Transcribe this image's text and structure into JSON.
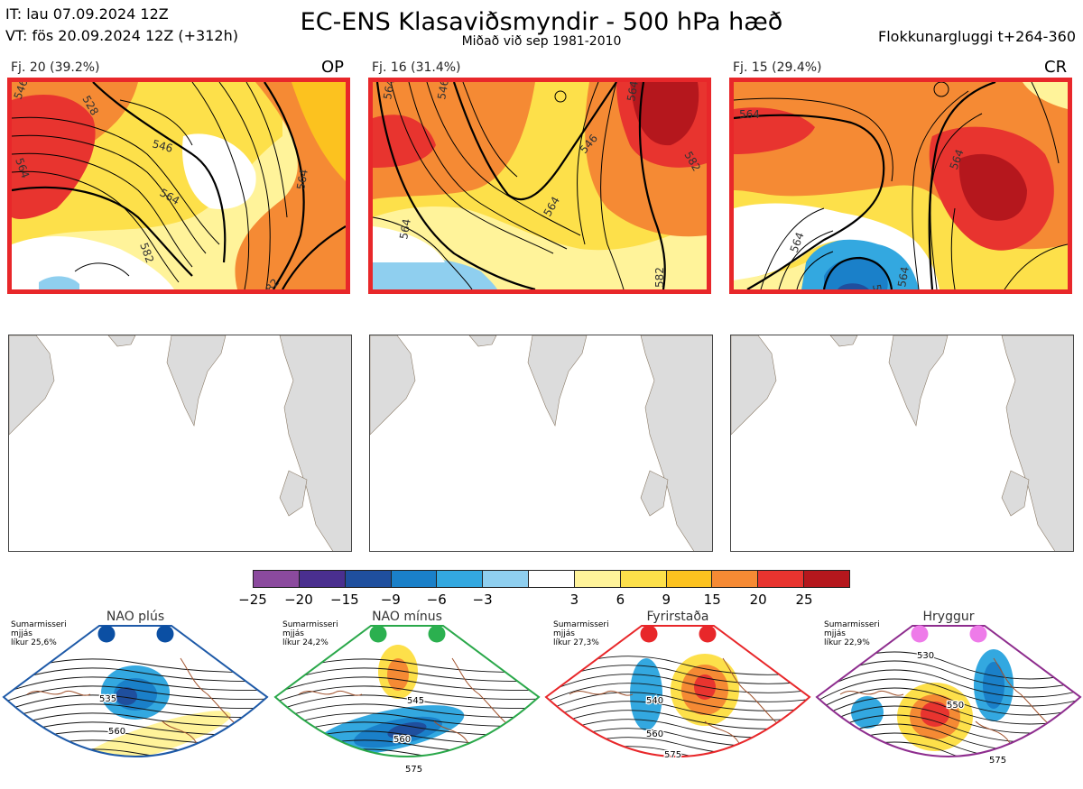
{
  "header": {
    "init_time": "IT: lau 07.09.2024 12Z",
    "valid_time": "VT: fös 20.09.2024 12Z  (+312h)",
    "title": "EC-ENS Klasaviðsmyndir - 500 hPa hæð",
    "subtitle": "Miðað við sep 1981-2010",
    "window": "Flokkunargluggi t+264-360"
  },
  "clusters": [
    {
      "label": "Fj. 20 (39.2%)",
      "tag": "OP",
      "contours": [
        "546",
        "528",
        "564",
        "546",
        "564",
        "582",
        "564",
        "582"
      ]
    },
    {
      "label": "Fj. 16 (31.4%)",
      "tag": "",
      "contours": [
        "564",
        "546",
        "564",
        "546",
        "582",
        "564",
        "564",
        "582"
      ]
    },
    {
      "label": "Fj. 15 (29.4%)",
      "tag": "CR",
      "contours": [
        "564",
        "564",
        "564",
        "546",
        "564"
      ]
    }
  ],
  "colorbar": {
    "colors": [
      "#8b4a9e",
      "#4a2f8f",
      "#1f4f9e",
      "#1a80c9",
      "#33a8e0",
      "#8fcfef",
      "#ffffff",
      "#fff39a",
      "#fde04a",
      "#fcc21f",
      "#f58a34",
      "#e8342f",
      "#b5171d"
    ],
    "ticks": [
      "−25",
      "−20",
      "−15",
      "−9",
      "−6",
      "−3",
      "3",
      "6",
      "9",
      "15",
      "20",
      "25"
    ]
  },
  "regimes": [
    {
      "name": "NAO plús",
      "season": "Sumarmisseri",
      "freq_label": "mjjás",
      "prob": "líkur 25,6%",
      "color": "#1e5aa8",
      "dot": "#0b4fa3",
      "contours": [
        "535",
        "560"
      ]
    },
    {
      "name": "NAO mínus",
      "season": "Sumarmisseri",
      "freq_label": "mjjás",
      "prob": "líkur 24,2%",
      "color": "#2aa84a",
      "dot": "#2bb04f",
      "contours": [
        "545",
        "560",
        "575"
      ]
    },
    {
      "name": "Fyrirstaða",
      "season": "Sumarmisseri",
      "freq_label": "mjjás",
      "prob": "líkur 27,3%",
      "color": "#e8272a",
      "dot": "#e8272a",
      "contours": [
        "540",
        "560",
        "575"
      ]
    },
    {
      "name": "Hryggur",
      "season": "Sumarmisseri",
      "freq_label": "mjjás",
      "prob": "líkur 22,9%",
      "color": "#8e2d8e",
      "dot": "#ee7be9",
      "contours": [
        "530",
        "550",
        "575"
      ]
    }
  ]
}
